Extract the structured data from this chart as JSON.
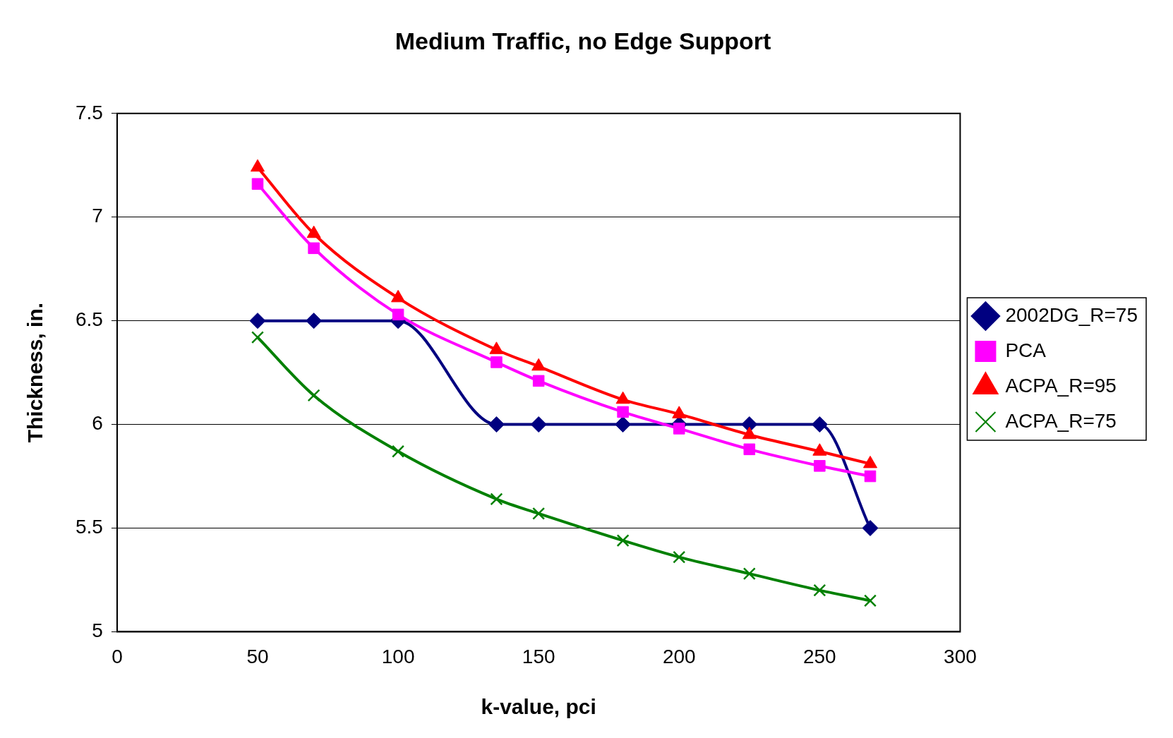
{
  "chart_data": {
    "type": "line",
    "title": "Medium Traffic, no Edge Support",
    "xlabel": "k-value, pci",
    "ylabel": "Thickness, in.",
    "x": [
      50,
      70,
      100,
      135,
      150,
      180,
      200,
      225,
      250,
      268
    ],
    "series": [
      {
        "name": "2002DG_R=75",
        "color": "#000080",
        "marker": "diamond",
        "values": [
          6.5,
          6.5,
          6.5,
          6,
          6,
          6,
          6,
          6,
          6,
          5.5
        ]
      },
      {
        "name": "PCA",
        "color": "#ff00ff",
        "marker": "square",
        "values": [
          7.16,
          6.85,
          6.53,
          6.3,
          6.21,
          6.06,
          5.98,
          5.88,
          5.8,
          5.75
        ]
      },
      {
        "name": "ACPA_R=95",
        "color": "#ff0000",
        "marker": "triangle",
        "values": [
          7.24,
          6.92,
          6.61,
          6.36,
          6.28,
          6.12,
          6.05,
          5.95,
          5.87,
          5.81
        ]
      },
      {
        "name": "ACPA_R=75",
        "color": "#008000",
        "marker": "cross",
        "values": [
          6.42,
          6.14,
          5.87,
          5.64,
          5.57,
          5.44,
          5.36,
          5.28,
          5.2,
          5.15
        ]
      }
    ],
    "xlim": [
      0,
      300
    ],
    "xticks": [
      0,
      50,
      100,
      150,
      200,
      250,
      300
    ],
    "ylim": [
      5,
      7.5
    ],
    "yticks": [
      5,
      5.5,
      6,
      6.5,
      7,
      7.5
    ],
    "grid": "y",
    "legend": "right",
    "line_style": "solid"
  }
}
